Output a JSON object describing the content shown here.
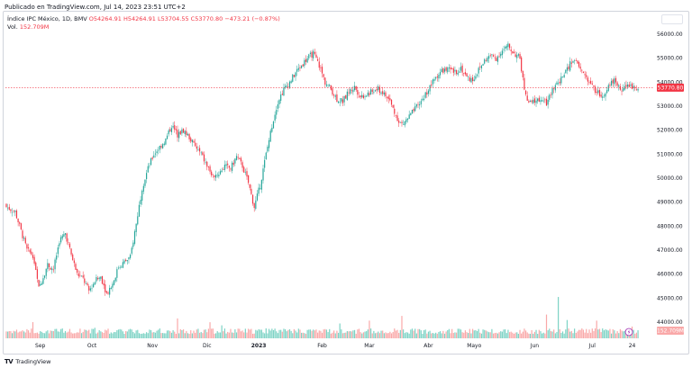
{
  "header": {
    "publisher": "Publicado en TradingView.com, Jul 14, 2023 23:51 UTC+2"
  },
  "legend": {
    "symbol": "Índice IPC México, 1D, BMV",
    "open": "O54264.91",
    "high": "H54264.91",
    "low": "L53704.55",
    "close": "C53770.80",
    "change": "−473.21 (−0.87%)",
    "vol_label": "Vol.",
    "vol_value": "152.709M"
  },
  "footer": {
    "brand": "TradingView"
  },
  "colors": {
    "up": "#26a69a",
    "down": "#f23645",
    "up_vol": "#7dd3c5",
    "down_vol": "#f9a8a8",
    "last": "#f23645"
  },
  "chart_data": {
    "type": "candlestick",
    "ylim": [
      44000,
      56500
    ],
    "y_ticks": [
      44000,
      45000,
      46000,
      47000,
      48000,
      49000,
      50000,
      51000,
      52000,
      53000,
      54000,
      55000,
      56000
    ],
    "y_tick_labels": [
      "44000.00",
      "45000.00",
      "46000.00",
      "47000.00",
      "48000.00",
      "49000.00",
      "50000.00",
      "51000.00",
      "52000.00",
      "53000.00",
      "54000.00",
      "55000.00",
      "56000.00"
    ],
    "last_price": 53770.8,
    "last_price_label": "53770.80",
    "last_volume_label": "152.709M",
    "x_labels": [
      {
        "label": "Sep",
        "index": 23,
        "bold": false
      },
      {
        "label": "Oct",
        "index": 58,
        "bold": false
      },
      {
        "label": "Nov",
        "index": 99,
        "bold": false
      },
      {
        "label": "Dic",
        "index": 136,
        "bold": false
      },
      {
        "label": "2023",
        "index": 171,
        "bold": true
      },
      {
        "label": "Feb",
        "index": 214,
        "bold": false
      },
      {
        "label": "Mar",
        "index": 246,
        "bold": false
      },
      {
        "label": "Abr",
        "index": 286,
        "bold": false
      },
      {
        "label": "Mayo",
        "index": 317,
        "bold": false
      },
      {
        "label": "Jun",
        "index": 358,
        "bold": false
      },
      {
        "label": "Jul",
        "index": 397,
        "bold": false
      },
      {
        "label": "24",
        "index": 424,
        "bold": false
      }
    ],
    "anchors": [
      [
        0,
        48800
      ],
      [
        6,
        48600
      ],
      [
        10,
        47800
      ],
      [
        14,
        47000
      ],
      [
        18,
        46800
      ],
      [
        22,
        45400
      ],
      [
        25,
        45900
      ],
      [
        28,
        46400
      ],
      [
        32,
        46200
      ],
      [
        36,
        47400
      ],
      [
        40,
        47700
      ],
      [
        44,
        46800
      ],
      [
        48,
        46000
      ],
      [
        52,
        45800
      ],
      [
        56,
        45300
      ],
      [
        60,
        45700
      ],
      [
        64,
        45900
      ],
      [
        68,
        45200
      ],
      [
        72,
        45600
      ],
      [
        76,
        46300
      ],
      [
        80,
        46500
      ],
      [
        84,
        46700
      ],
      [
        88,
        48100
      ],
      [
        92,
        49600
      ],
      [
        96,
        50400
      ],
      [
        100,
        51000
      ],
      [
        104,
        51300
      ],
      [
        108,
        51600
      ],
      [
        112,
        52200
      ],
      [
        116,
        51800
      ],
      [
        120,
        52000
      ],
      [
        124,
        51700
      ],
      [
        128,
        51300
      ],
      [
        132,
        51000
      ],
      [
        136,
        50500
      ],
      [
        140,
        50100
      ],
      [
        144,
        50200
      ],
      [
        148,
        50500
      ],
      [
        152,
        50400
      ],
      [
        156,
        50900
      ],
      [
        160,
        50500
      ],
      [
        164,
        49800
      ],
      [
        168,
        48800
      ],
      [
        172,
        49700
      ],
      [
        176,
        51000
      ],
      [
        180,
        52200
      ],
      [
        184,
        53200
      ],
      [
        188,
        53700
      ],
      [
        192,
        54000
      ],
      [
        196,
        54400
      ],
      [
        200,
        54700
      ],
      [
        204,
        55000
      ],
      [
        208,
        55200
      ],
      [
        212,
        54700
      ],
      [
        216,
        54000
      ],
      [
        220,
        53700
      ],
      [
        224,
        53300
      ],
      [
        228,
        53200
      ],
      [
        232,
        53600
      ],
      [
        236,
        53800
      ],
      [
        240,
        53400
      ],
      [
        244,
        53500
      ],
      [
        248,
        53600
      ],
      [
        252,
        53700
      ],
      [
        256,
        53500
      ],
      [
        260,
        53200
      ],
      [
        264,
        52600
      ],
      [
        268,
        52200
      ],
      [
        272,
        52500
      ],
      [
        276,
        52800
      ],
      [
        280,
        53100
      ],
      [
        284,
        53500
      ],
      [
        288,
        53900
      ],
      [
        292,
        54300
      ],
      [
        296,
        54500
      ],
      [
        300,
        54500
      ],
      [
        304,
        54400
      ],
      [
        308,
        54600
      ],
      [
        312,
        54200
      ],
      [
        316,
        54100
      ],
      [
        320,
        54500
      ],
      [
        324,
        54900
      ],
      [
        328,
        55100
      ],
      [
        332,
        55000
      ],
      [
        336,
        55300
      ],
      [
        340,
        55500
      ],
      [
        344,
        55200
      ],
      [
        348,
        55000
      ],
      [
        350,
        54100
      ],
      [
        352,
        53400
      ],
      [
        354,
        53100
      ],
      [
        358,
        53200
      ],
      [
        362,
        53300
      ],
      [
        366,
        53100
      ],
      [
        370,
        53700
      ],
      [
        374,
        54000
      ],
      [
        378,
        54300
      ],
      [
        380,
        54500
      ],
      [
        384,
        55000
      ],
      [
        388,
        54600
      ],
      [
        392,
        54300
      ],
      [
        396,
        53900
      ],
      [
        400,
        53600
      ],
      [
        404,
        53400
      ],
      [
        408,
        53900
      ],
      [
        412,
        54100
      ],
      [
        416,
        53700
      ],
      [
        420,
        53800
      ],
      [
        424,
        53850
      ],
      [
        428,
        53770
      ]
    ],
    "volume_spikes": [
      [
        18,
        1.6
      ],
      [
        60,
        1.1
      ],
      [
        116,
        2.2
      ],
      [
        138,
        1.7
      ],
      [
        146,
        1.4
      ],
      [
        176,
        1.0
      ],
      [
        226,
        1.5
      ],
      [
        246,
        1.8
      ],
      [
        268,
        2.4
      ],
      [
        366,
        2.5
      ],
      [
        374,
        4.4
      ],
      [
        380,
        1.9
      ],
      [
        400,
        1.9
      ],
      [
        424,
        1.2
      ]
    ]
  }
}
